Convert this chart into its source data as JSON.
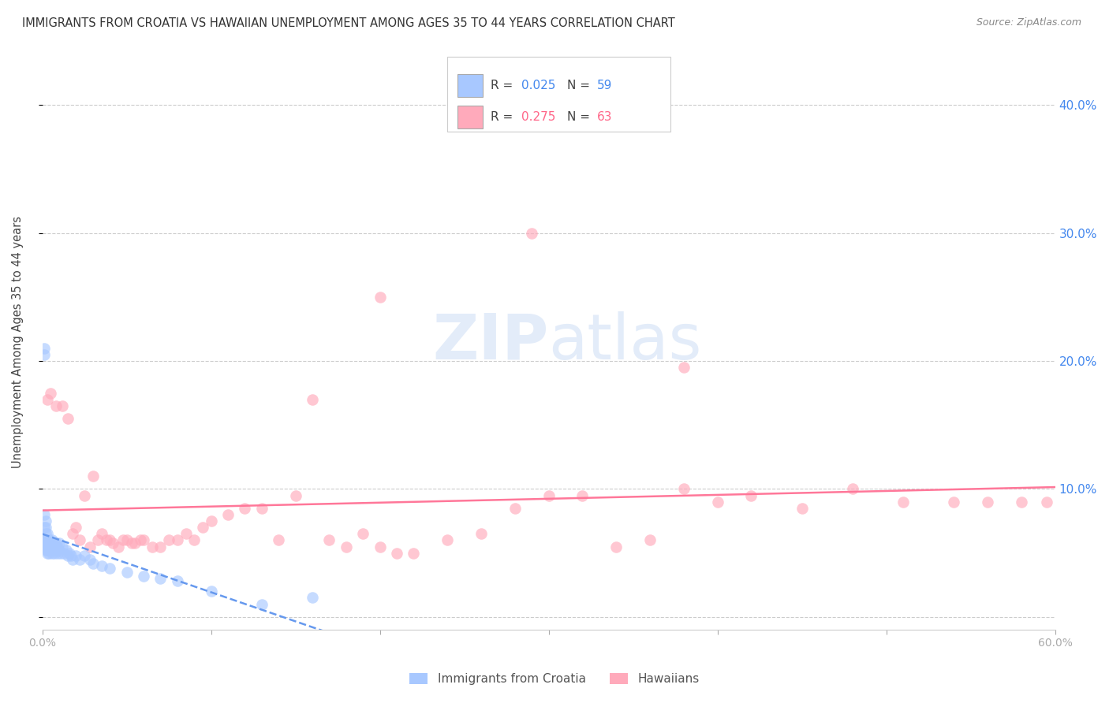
{
  "title": "IMMIGRANTS FROM CROATIA VS HAWAIIAN UNEMPLOYMENT AMONG AGES 35 TO 44 YEARS CORRELATION CHART",
  "source": "Source: ZipAtlas.com",
  "ylabel": "Unemployment Among Ages 35 to 44 years",
  "xlim": [
    0.0,
    0.6
  ],
  "ylim": [
    -0.01,
    0.44
  ],
  "x_ticks": [
    0.0,
    0.1,
    0.2,
    0.3,
    0.4,
    0.5,
    0.6
  ],
  "x_tick_labels": [
    "0.0%",
    "",
    "",
    "",
    "",
    "",
    "60.0%"
  ],
  "y_ticks": [
    0.0,
    0.1,
    0.2,
    0.3,
    0.4
  ],
  "y_tick_labels_right": [
    "",
    "10.0%",
    "20.0%",
    "30.0%",
    "40.0%"
  ],
  "grid_color": "#cccccc",
  "background_color": "#ffffff",
  "watermark_zip": "ZIP",
  "watermark_atlas": "atlas",
  "legend_R1": "R = 0.025",
  "legend_N1": "N = 59",
  "legend_R2": "R = 0.275",
  "legend_N2": "N = 63",
  "color_croatia": "#a8c8ff",
  "color_hawaiian": "#ffaabb",
  "color_trend_croatia": "#6699ee",
  "color_trend_hawaiian": "#ff7799",
  "legend_label1": "Immigrants from Croatia",
  "legend_label2": "Hawaiians",
  "croatia_x": [
    0.001,
    0.001,
    0.001,
    0.001,
    0.001,
    0.002,
    0.002,
    0.002,
    0.002,
    0.002,
    0.002,
    0.002,
    0.003,
    0.003,
    0.003,
    0.003,
    0.003,
    0.003,
    0.004,
    0.004,
    0.004,
    0.004,
    0.005,
    0.005,
    0.005,
    0.006,
    0.006,
    0.006,
    0.007,
    0.007,
    0.007,
    0.008,
    0.008,
    0.009,
    0.009,
    0.01,
    0.01,
    0.011,
    0.012,
    0.013,
    0.014,
    0.015,
    0.016,
    0.017,
    0.018,
    0.02,
    0.022,
    0.025,
    0.028,
    0.03,
    0.035,
    0.04,
    0.05,
    0.06,
    0.07,
    0.08,
    0.1,
    0.13,
    0.16
  ],
  "croatia_y": [
    0.21,
    0.205,
    0.08,
    0.07,
    0.06,
    0.075,
    0.07,
    0.065,
    0.06,
    0.058,
    0.055,
    0.052,
    0.065,
    0.06,
    0.058,
    0.055,
    0.052,
    0.05,
    0.06,
    0.058,
    0.055,
    0.05,
    0.058,
    0.055,
    0.052,
    0.06,
    0.055,
    0.05,
    0.058,
    0.055,
    0.05,
    0.058,
    0.052,
    0.055,
    0.05,
    0.058,
    0.052,
    0.05,
    0.055,
    0.05,
    0.052,
    0.048,
    0.05,
    0.048,
    0.045,
    0.048,
    0.045,
    0.048,
    0.045,
    0.042,
    0.04,
    0.038,
    0.035,
    0.032,
    0.03,
    0.028,
    0.02,
    0.01,
    0.015
  ],
  "hawaiian_x": [
    0.003,
    0.005,
    0.008,
    0.012,
    0.015,
    0.018,
    0.02,
    0.022,
    0.025,
    0.028,
    0.03,
    0.033,
    0.035,
    0.038,
    0.04,
    0.042,
    0.045,
    0.048,
    0.05,
    0.053,
    0.055,
    0.058,
    0.06,
    0.065,
    0.07,
    0.075,
    0.08,
    0.085,
    0.09,
    0.095,
    0.1,
    0.11,
    0.12,
    0.13,
    0.14,
    0.15,
    0.16,
    0.17,
    0.18,
    0.19,
    0.2,
    0.21,
    0.22,
    0.24,
    0.26,
    0.28,
    0.3,
    0.32,
    0.34,
    0.36,
    0.38,
    0.4,
    0.42,
    0.45,
    0.48,
    0.51,
    0.54,
    0.56,
    0.58,
    0.595,
    0.2,
    0.38,
    0.29
  ],
  "hawaiian_y": [
    0.17,
    0.175,
    0.165,
    0.165,
    0.155,
    0.065,
    0.07,
    0.06,
    0.095,
    0.055,
    0.11,
    0.06,
    0.065,
    0.06,
    0.06,
    0.058,
    0.055,
    0.06,
    0.06,
    0.058,
    0.058,
    0.06,
    0.06,
    0.055,
    0.055,
    0.06,
    0.06,
    0.065,
    0.06,
    0.07,
    0.075,
    0.08,
    0.085,
    0.085,
    0.06,
    0.095,
    0.17,
    0.06,
    0.055,
    0.065,
    0.055,
    0.05,
    0.05,
    0.06,
    0.065,
    0.085,
    0.095,
    0.095,
    0.055,
    0.06,
    0.1,
    0.09,
    0.095,
    0.085,
    0.1,
    0.09,
    0.09,
    0.09,
    0.09,
    0.09,
    0.25,
    0.195,
    0.3
  ]
}
